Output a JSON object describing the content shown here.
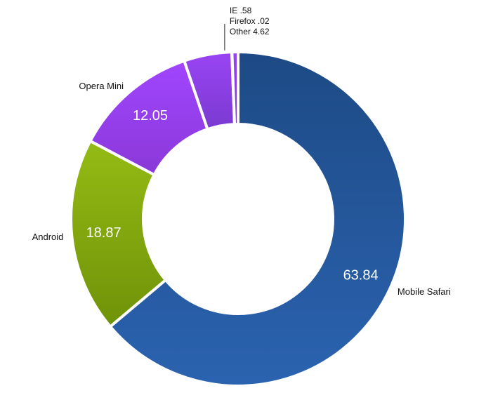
{
  "chart_data": {
    "type": "pie",
    "variant": "donut",
    "title": "",
    "slices": [
      {
        "label": "Mobile Safari",
        "value": 63.84,
        "value_label": "63.84",
        "color": "#2457a0",
        "color_top": "#1d4a85",
        "color_bottom": "#2b63b0"
      },
      {
        "label": "Android",
        "value": 18.87,
        "value_label": "18.87",
        "color": "#84aa10",
        "color_top": "#94bb14",
        "color_bottom": "#6f9208"
      },
      {
        "label": "Opera Mini",
        "value": 12.05,
        "value_label": "12.05",
        "color": "#9a3ef2",
        "color_top": "#a046ff",
        "color_bottom": "#8a38d8"
      },
      {
        "label": "Other",
        "value": 4.62,
        "value_label": "4.62",
        "color": "#8640e6",
        "color_top": "#9a44f4",
        "color_bottom": "#7a3ad0"
      },
      {
        "label": "Firefox",
        "value": 0.02,
        "value_label": ".02",
        "color": "#8640e6",
        "color_top": "#9a44f4",
        "color_bottom": "#7a3ad0"
      },
      {
        "label": "IE",
        "value": 0.58,
        "value_label": ".58",
        "color": "#8640e6",
        "color_top": "#9a44f4",
        "color_bottom": "#7a3ad0"
      }
    ],
    "small_slices_callout": [
      "IE .58",
      "Firefox .02",
      "Other 4.62"
    ],
    "legend": "none"
  }
}
